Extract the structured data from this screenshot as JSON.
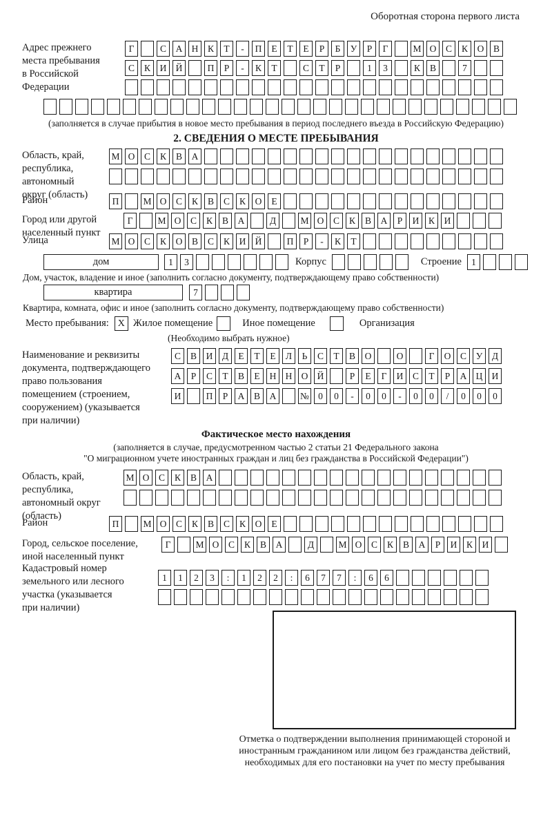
{
  "page_title": "Оборотная сторона первого листа",
  "colors": {
    "ink": "#1a1a1a",
    "paper": "#ffffff"
  },
  "address_block": {
    "label": "Адрес прежнего\nместа пребывания\nв Российской\nФедерации",
    "rows": [
      {
        "text": "Г САНКТ-ПЕТЕРБУРГ МОСКОВ",
        "len": 24
      },
      {
        "text": "СКИЙ ПР-КТ СТР 13 КВ 7",
        "len": 24
      },
      {
        "text": "",
        "len": 24
      }
    ],
    "extra_row": {
      "text": "",
      "len": 30
    },
    "note": "(заполняется в случае прибытия в новое место пребывания в период последнего въезда в Российскую Федерацию)"
  },
  "section2": {
    "title": "2. СВЕДЕНИЯ О МЕСТЕ ПРЕБЫВАНИЯ",
    "region": {
      "label": "Область, край,\nреспублика,\nавтономный\nокруг (область)",
      "rows": [
        {
          "text": "МОСКВА",
          "len": 25
        },
        {
          "text": "",
          "len": 25
        }
      ]
    },
    "district": {
      "label": "Район",
      "row": {
        "text": "П МОСКВСКОЕ",
        "len": 25
      }
    },
    "city": {
      "label": "Город или другой\nнаселенный пункт",
      "row": {
        "text": "Г МОСКВА Д МОСКВАРИКИ",
        "len": 24
      }
    },
    "street": {
      "label": "Улица",
      "row": {
        "text": "МОСКОВСКИЙ ПР-КТ",
        "len": 25
      }
    },
    "house": {
      "box_label": "дом",
      "cells": {
        "text": "13",
        "len": 8
      },
      "korpus_label": "Корпус",
      "korpus_cells": {
        "text": "",
        "len": 5
      },
      "stroenie_label": "Строение",
      "stroenie_cells": {
        "text": "1",
        "len": 4
      }
    },
    "house_note": "Дом, участок, владение и иное (заполнить согласно документу, подтверждающему право собственности)",
    "apartment": {
      "box_label": "квартира",
      "cells": {
        "text": "7",
        "len": 4
      }
    },
    "apartment_note": "Квартира, комната, офис и иное (заполнить согласно документу, подтверждающему право собственности)",
    "stay": {
      "label": "Место пребывания:",
      "options": [
        {
          "label": "Жилое помещение",
          "mark": "X"
        },
        {
          "label": "Иное помещение",
          "mark": ""
        },
        {
          "label": "Организация",
          "mark": ""
        }
      ],
      "note": "(Необходимо выбрать нужное)"
    },
    "document": {
      "label": "Наименование и реквизиты\nдокумента, подтверждающего\nправо пользования\nпомещением (строением,\nсооружением) (указывается\nпри наличии)",
      "rows": [
        {
          "text": "СВИДЕТЕЛЬСТВО О ГОСУД",
          "len": 21
        },
        {
          "text": "АРСТВЕННОЙ РЕГИСТРАЦИ",
          "len": 21
        },
        {
          "text": "И ПРАВА №00-00-00/000",
          "len": 21
        }
      ]
    }
  },
  "actual_location": {
    "title": "Фактическое место нахождения",
    "note_line1": "(заполняется в случае, предусмотренном частью 2 статьи 21 Федерального закона",
    "note_line2": "\"О миграционном учете иностранных граждан и лиц без гражданства в Российской Федерации\")",
    "region": {
      "label": "Область, край,\nреспублика,\nавтономный округ\n(область)",
      "rows": [
        {
          "text": "МОСКВА",
          "len": 24
        },
        {
          "text": "",
          "len": 24
        }
      ]
    },
    "district": {
      "label": "Район",
      "row": {
        "text": "П МОСКВСКОЕ",
        "len": 25
      }
    },
    "city": {
      "label": "Город, сельское поселение,\nиной населенный пункт",
      "row": {
        "text": "Г МОСКВА Д МОСКВАРИКИ",
        "len": 22
      }
    },
    "cadastre": {
      "label": "Кадастровый номер\nземельного или лесного\nучастка (указывается\nпри наличии)",
      "rows": [
        {
          "text": "1123:122:677:66",
          "len": 21
        },
        {
          "text": "",
          "len": 21
        }
      ]
    }
  },
  "confirmation": {
    "note": "Отметка о подтверждении выполнения принимающей стороной и иностранным гражданином или лицом без гражданства действий, необходимых для его постановки на учет по месту пребывания"
  }
}
